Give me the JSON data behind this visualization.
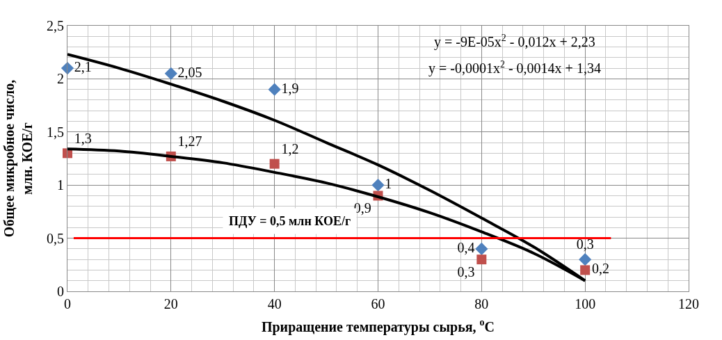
{
  "chart_data": {
    "type": "scatter",
    "xlabel": "Приращение температуры сырья, $^{o}$C",
    "ylabel": "Общее микробное число, млн. КОЕ/г",
    "x": [
      0,
      20,
      40,
      60,
      80,
      100
    ],
    "series": [
      {
        "color": "#4f81bd",
        "marker": "diamond",
        "values": [
          2.1,
          2.05,
          1.9,
          1,
          0.4,
          0.3
        ],
        "value_labels": [
          "2,1",
          "2,05",
          "1,9",
          "1",
          "0,4",
          "0,3"
        ]
      },
      {
        "color": "#c0504d",
        "marker": "square",
        "values": [
          1.3,
          1.27,
          1.2,
          0.9,
          0.3,
          0.2
        ],
        "value_labels": [
          "1,3",
          "1,27",
          "1,2",
          "0,9",
          "0,3",
          "0,2"
        ]
      },
      {
        "type": "line",
        "color": "#000000",
        "marker": "none",
        "x": [
          0,
          10,
          20,
          30,
          40,
          50,
          60,
          70,
          80,
          90,
          100
        ],
        "values": [
          2.23,
          2.1,
          1.95,
          1.79,
          1.61,
          1.4,
          1.19,
          0.95,
          0.69,
          0.42,
          0.1
        ]
      },
      {
        "type": "line",
        "color": "#000000",
        "marker": "none",
        "x": [
          0,
          10,
          20,
          30,
          40,
          50,
          60,
          70,
          80,
          90,
          100
        ],
        "values": [
          1.34,
          1.32,
          1.27,
          1.21,
          1.12,
          1.02,
          0.89,
          0.74,
          0.56,
          0.36,
          0.1
        ]
      }
    ],
    "ref_lines": [
      {
        "axis": "y",
        "value": 0.5,
        "label": "ПДУ = 0,5 млн КОЕ/г",
        "color": "#ff0000"
      }
    ],
    "annotations": [
      "y = -9E-05x$^{2}$ - 0,012x + 2,23",
      "y = -0,0001x$^{2}$ - 0,0014x + 1,34"
    ],
    "xlim": [
      0,
      120
    ],
    "xticks": [
      0,
      20,
      40,
      60,
      80,
      100,
      120
    ],
    "ylim": [
      0,
      2.5
    ],
    "yticks": [
      0,
      {
        "value": 0.5,
        "label": "0,5"
      },
      1,
      {
        "value": 1.5,
        "label": "1,5"
      },
      2,
      {
        "value": 2.5,
        "label": "2,5"
      }
    ],
    "grid": true
  }
}
